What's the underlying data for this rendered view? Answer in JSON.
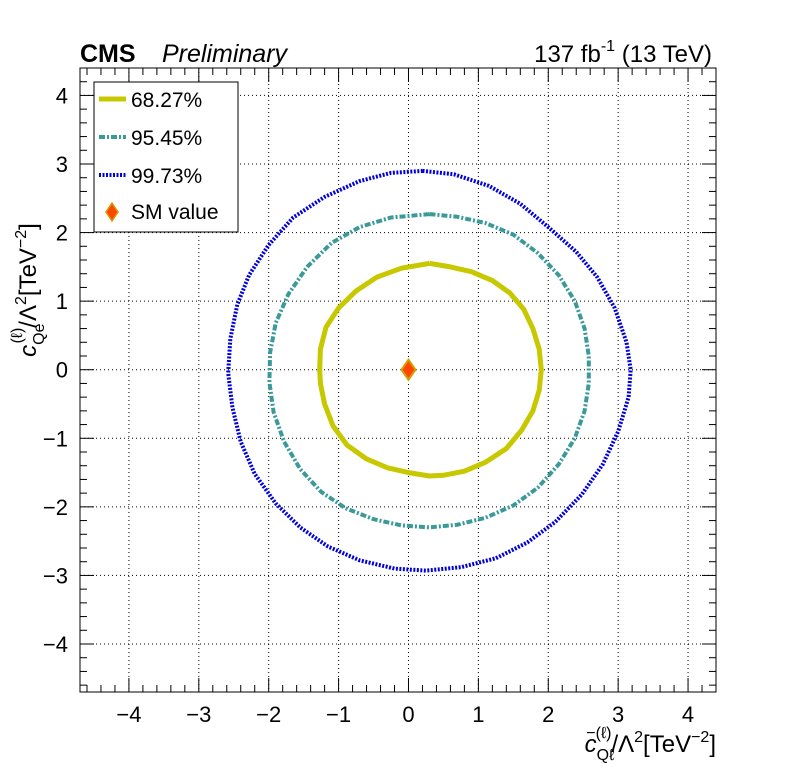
{
  "header": {
    "experiment": "CMS",
    "status": "Preliminary",
    "lumi_value": "137 fb",
    "lumi_exp": "-1",
    "energy": " (13 TeV)"
  },
  "chart_data": {
    "type": "scatter",
    "xlabel": "c_{Qℓ}^{-(ℓ)}/Λ^2[TeV^{-2}]",
    "ylabel": "c_{Qe}^{(ℓ)}/Λ^2[TeV^{-2}]",
    "axis_labels": {
      "x": {
        "c": "c",
        "sub": "Qℓ",
        "sup": "−(ℓ)",
        "mid": "/Λ",
        "mid_sup": "2",
        "unit": "[TeV",
        "unit_sup": "−2",
        "close": "]"
      },
      "y": {
        "c": "c",
        "sub": "Qe",
        "sup": "(ℓ)",
        "mid": "/Λ",
        "mid_sup": "2",
        "unit": "[TeV",
        "unit_sup": "−2",
        "close": "]"
      }
    },
    "xlim": [
      -4.7,
      4.4
    ],
    "ylim": [
      -4.7,
      4.4
    ],
    "xticks": [
      -4,
      -3,
      -2,
      -1,
      0,
      1,
      2,
      3,
      4
    ],
    "yticks": [
      -4,
      -3,
      -2,
      -1,
      0,
      1,
      2,
      3,
      4
    ],
    "xtick_labels": [
      "−4",
      "−3",
      "−2",
      "−1",
      "0",
      "1",
      "2",
      "3",
      "4"
    ],
    "ytick_labels": [
      "−4",
      "−3",
      "−2",
      "−1",
      "0",
      "1",
      "2",
      "3",
      "4"
    ],
    "grid": true,
    "legend_position": "top-left",
    "series": [
      {
        "name": "68.27%",
        "style": "solid",
        "color": "#c8c800",
        "points": [
          [
            0.3,
            1.55
          ],
          [
            0.6,
            1.5
          ],
          [
            0.9,
            1.43
          ],
          [
            1.2,
            1.3
          ],
          [
            1.45,
            1.12
          ],
          [
            1.65,
            0.88
          ],
          [
            1.78,
            0.6
          ],
          [
            1.87,
            0.3
          ],
          [
            1.9,
            0.0
          ],
          [
            1.87,
            -0.3
          ],
          [
            1.78,
            -0.6
          ],
          [
            1.62,
            -0.88
          ],
          [
            1.4,
            -1.15
          ],
          [
            1.1,
            -1.35
          ],
          [
            0.8,
            -1.48
          ],
          [
            0.5,
            -1.54
          ],
          [
            0.3,
            -1.55
          ],
          [
            -0.0,
            -1.5
          ],
          [
            -0.3,
            -1.43
          ],
          [
            -0.6,
            -1.3
          ],
          [
            -0.88,
            -1.1
          ],
          [
            -1.08,
            -0.82
          ],
          [
            -1.2,
            -0.5
          ],
          [
            -1.26,
            -0.2
          ],
          [
            -1.27,
            0.0
          ],
          [
            -1.26,
            0.3
          ],
          [
            -1.18,
            0.62
          ],
          [
            -1.0,
            0.9
          ],
          [
            -0.75,
            1.15
          ],
          [
            -0.45,
            1.35
          ],
          [
            -0.1,
            1.48
          ],
          [
            0.3,
            1.55
          ]
        ]
      },
      {
        "name": "95.45%",
        "style": "dash-dot",
        "color": "#3a9a9a",
        "points": [
          [
            0.3,
            2.27
          ],
          [
            0.7,
            2.23
          ],
          [
            1.1,
            2.14
          ],
          [
            1.5,
            1.97
          ],
          [
            1.85,
            1.7
          ],
          [
            2.15,
            1.38
          ],
          [
            2.38,
            1.0
          ],
          [
            2.52,
            0.6
          ],
          [
            2.58,
            0.2
          ],
          [
            2.58,
            -0.2
          ],
          [
            2.52,
            -0.6
          ],
          [
            2.38,
            -1.0
          ],
          [
            2.15,
            -1.38
          ],
          [
            1.85,
            -1.72
          ],
          [
            1.5,
            -1.98
          ],
          [
            1.1,
            -2.16
          ],
          [
            0.7,
            -2.26
          ],
          [
            0.3,
            -2.3
          ],
          [
            -0.1,
            -2.27
          ],
          [
            -0.5,
            -2.18
          ],
          [
            -0.9,
            -2.02
          ],
          [
            -1.25,
            -1.78
          ],
          [
            -1.55,
            -1.45
          ],
          [
            -1.78,
            -1.05
          ],
          [
            -1.93,
            -0.62
          ],
          [
            -1.99,
            -0.18
          ],
          [
            -1.98,
            0.25
          ],
          [
            -1.9,
            0.68
          ],
          [
            -1.72,
            1.1
          ],
          [
            -1.45,
            1.5
          ],
          [
            -1.1,
            1.85
          ],
          [
            -0.7,
            2.08
          ],
          [
            -0.25,
            2.22
          ],
          [
            0.3,
            2.27
          ]
        ]
      },
      {
        "name": "99.73%",
        "style": "dotted",
        "color": "#0000dd",
        "points": [
          [
            0.2,
            2.9
          ],
          [
            0.65,
            2.85
          ],
          [
            1.15,
            2.68
          ],
          [
            1.6,
            2.42
          ],
          [
            2.0,
            2.08
          ],
          [
            2.4,
            1.72
          ],
          [
            2.7,
            1.35
          ],
          [
            2.95,
            0.9
          ],
          [
            3.12,
            0.4
          ],
          [
            3.18,
            0.0
          ],
          [
            3.15,
            -0.4
          ],
          [
            3.0,
            -0.9
          ],
          [
            2.78,
            -1.38
          ],
          [
            2.48,
            -1.82
          ],
          [
            2.1,
            -2.22
          ],
          [
            1.7,
            -2.52
          ],
          [
            1.25,
            -2.75
          ],
          [
            0.75,
            -2.88
          ],
          [
            0.25,
            -2.93
          ],
          [
            -0.2,
            -2.9
          ],
          [
            -0.7,
            -2.78
          ],
          [
            -1.15,
            -2.58
          ],
          [
            -1.55,
            -2.3
          ],
          [
            -1.9,
            -1.95
          ],
          [
            -2.2,
            -1.52
          ],
          [
            -2.4,
            -1.05
          ],
          [
            -2.52,
            -0.55
          ],
          [
            -2.58,
            -0.05
          ],
          [
            -2.55,
            0.45
          ],
          [
            -2.45,
            0.95
          ],
          [
            -2.28,
            1.38
          ],
          [
            -2.0,
            1.82
          ],
          [
            -1.65,
            2.22
          ],
          [
            -1.2,
            2.52
          ],
          [
            -0.7,
            2.75
          ],
          [
            -0.25,
            2.87
          ],
          [
            0.2,
            2.9
          ]
        ]
      }
    ],
    "sm_point": {
      "name": "SM value",
      "x": 0,
      "y": 0,
      "fill": "#ff4500",
      "edge": "#d4a000"
    },
    "legend": [
      "68.27%",
      "95.45%",
      "99.73%",
      "SM value"
    ]
  }
}
